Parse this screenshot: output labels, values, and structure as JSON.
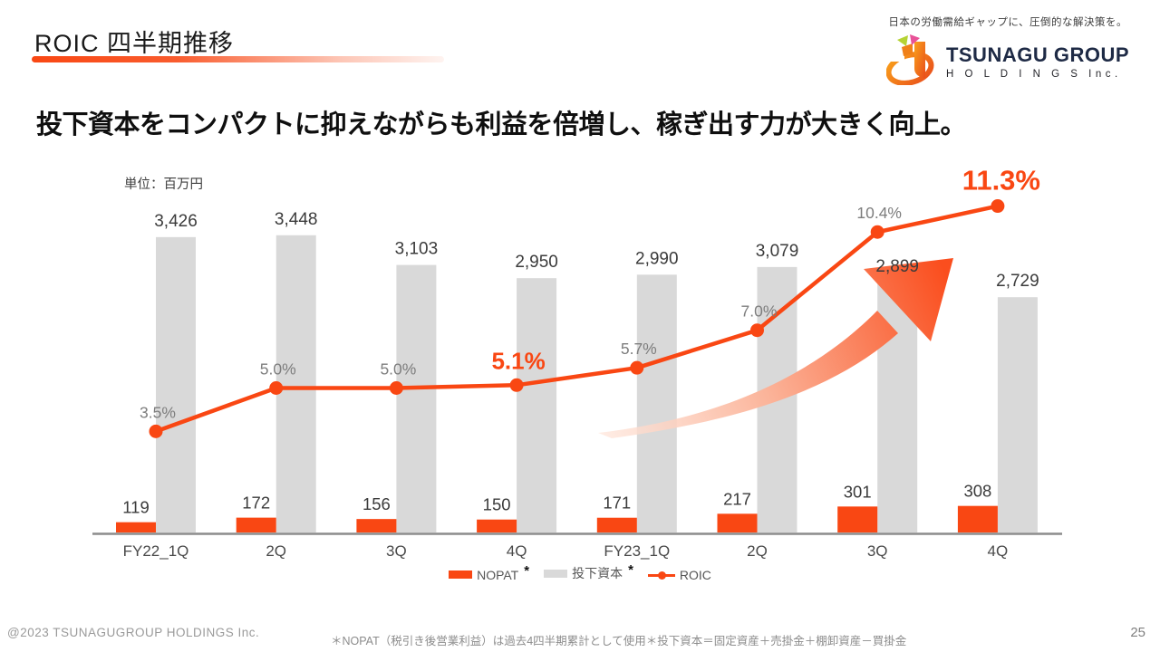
{
  "header": {
    "title": "ROIC  四半期推移",
    "tagline": "日本の労働需給ギャップに、圧倒的な解決策を。",
    "logo": {
      "line1": "TSUNAGU GROUP",
      "line2": "H O L D I N G S Inc."
    }
  },
  "headline": "投下資本をコンパクトに抑えながらも利益を倍増し、稼ぎ出す力が大きく向上。",
  "chart_data": {
    "type": "bar",
    "subtype": "clustered-bar-with-line",
    "title": "ROIC 四半期推移",
    "unit_label": "単位：百万円",
    "xlabel": "",
    "ylabel": "百万円",
    "grid": false,
    "legend_position": "bottom-center",
    "categories": [
      "FY22_1Q",
      "2Q",
      "3Q",
      "4Q",
      "FY23_1Q",
      "2Q",
      "3Q",
      "4Q"
    ],
    "series": [
      {
        "name": "NOPAT",
        "type": "bar",
        "color": "#f94713",
        "values": [
          119,
          172,
          156,
          150,
          171,
          217,
          301,
          308
        ]
      },
      {
        "name": "投下資本",
        "type": "bar",
        "color": "#d9d9d9",
        "values": [
          3426,
          3448,
          3103,
          2950,
          2990,
          3079,
          2899,
          2729
        ]
      },
      {
        "name": "ROIC",
        "type": "line",
        "color": "#f94713",
        "unit": "%",
        "values": [
          3.5,
          5.0,
          5.0,
          5.1,
          5.7,
          7.0,
          10.4,
          11.3
        ]
      }
    ],
    "roic_point_labels": [
      "3.5%",
      "5.0%",
      "5.0%",
      "5.1%",
      "5.7%",
      "7.0%",
      "10.4%",
      "11.3%"
    ],
    "emphasized_points": [
      3,
      7
    ],
    "bar_axis_range": [
      0,
      3500
    ],
    "annotation": "growth-arrow-up-right",
    "legend": [
      {
        "label": "NOPAT",
        "asterisk": "*",
        "swatch": "bar",
        "color": "#f94713"
      },
      {
        "label": "投下資本",
        "asterisk": "*",
        "swatch": "bar",
        "color": "#d9d9d9"
      },
      {
        "label": "ROIC",
        "asterisk": "",
        "swatch": "line",
        "color": "#f94713"
      }
    ]
  },
  "colors": {
    "accent": "#f94713",
    "bar_gray": "#d9d9d9",
    "pct_label": "#7d7d7d",
    "value_label": "#3b3b3b",
    "axis": "#8c8c8c"
  },
  "footer": {
    "copyright": "@2023 TSUNAGUGROUP  HOLDINGS  Inc.",
    "footnote": "＊NOPAT（税引き後営業利益）は過去4四半期累計として使用＊投下資本＝固定資産＋売掛金＋棚卸資産－買掛金",
    "page_number": "25"
  }
}
